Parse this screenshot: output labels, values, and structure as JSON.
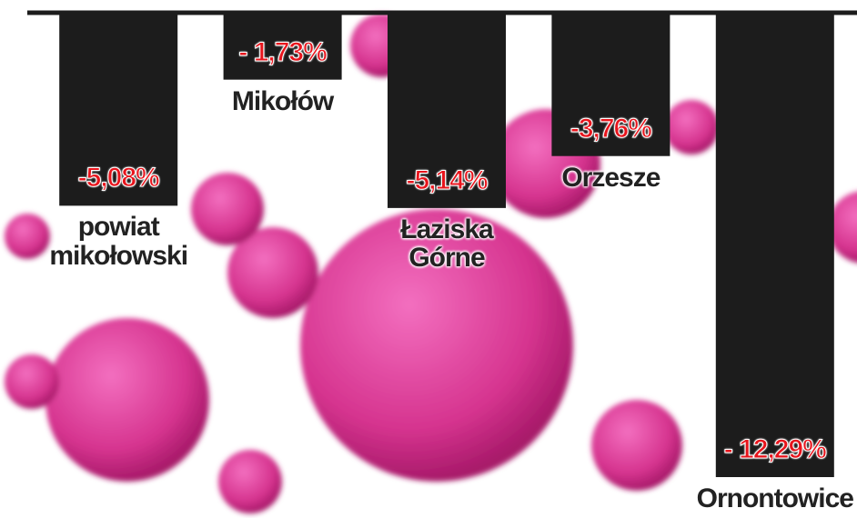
{
  "chart_data": {
    "type": "bar",
    "categories": [
      "powiat mikołowski",
      "Mikołów",
      "Łaziska Górne",
      "Orzesze",
      "Ornontowice"
    ],
    "values": [
      -5.08,
      -1.73,
      -5.14,
      -3.76,
      -12.29
    ],
    "value_labels": [
      "-5,08%",
      "- 1,73%",
      "-5,14%",
      "-3,76%",
      "- 12,29%"
    ],
    "color": "#1c1c1c",
    "label_color": "#e8141c"
  }
}
